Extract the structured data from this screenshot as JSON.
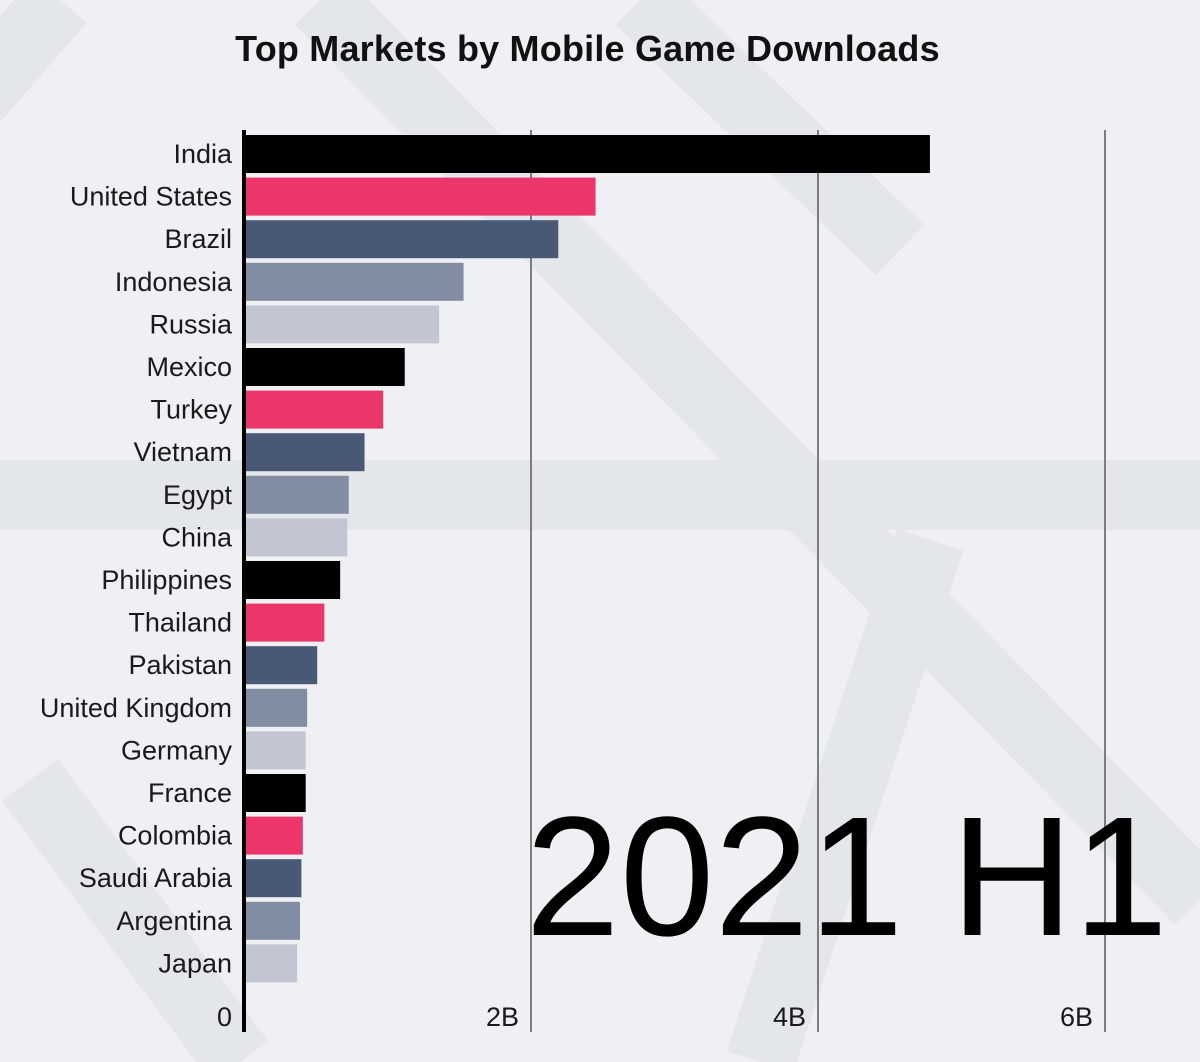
{
  "chart_data": {
    "type": "bar",
    "orientation": "horizontal",
    "title": "Top Markets by Mobile Game Downloads",
    "period": "2021 H1",
    "categories": [
      "India",
      "United States",
      "Brazil",
      "Indonesia",
      "Russia",
      "Mexico",
      "Turkey",
      "Vietnam",
      "Egypt",
      "China",
      "Philippines",
      "Thailand",
      "Pakistan",
      "United Kingdom",
      "Germany",
      "France",
      "Colombia",
      "Saudi Arabia",
      "Argentina",
      "Japan"
    ],
    "values": [
      4.78,
      2.45,
      2.19,
      1.53,
      1.36,
      1.12,
      0.97,
      0.84,
      0.73,
      0.72,
      0.67,
      0.56,
      0.51,
      0.44,
      0.43,
      0.43,
      0.41,
      0.4,
      0.39,
      0.37
    ],
    "xlim": [
      0,
      6.5
    ],
    "ticks": [
      0,
      2,
      4,
      6
    ],
    "tick_labels": [
      "0",
      "2B",
      "4B",
      "6B"
    ],
    "grid": true,
    "palette": [
      "#000000",
      "#ec366b",
      "#485875",
      "#818da1",
      "#c2c6d3"
    ]
  }
}
